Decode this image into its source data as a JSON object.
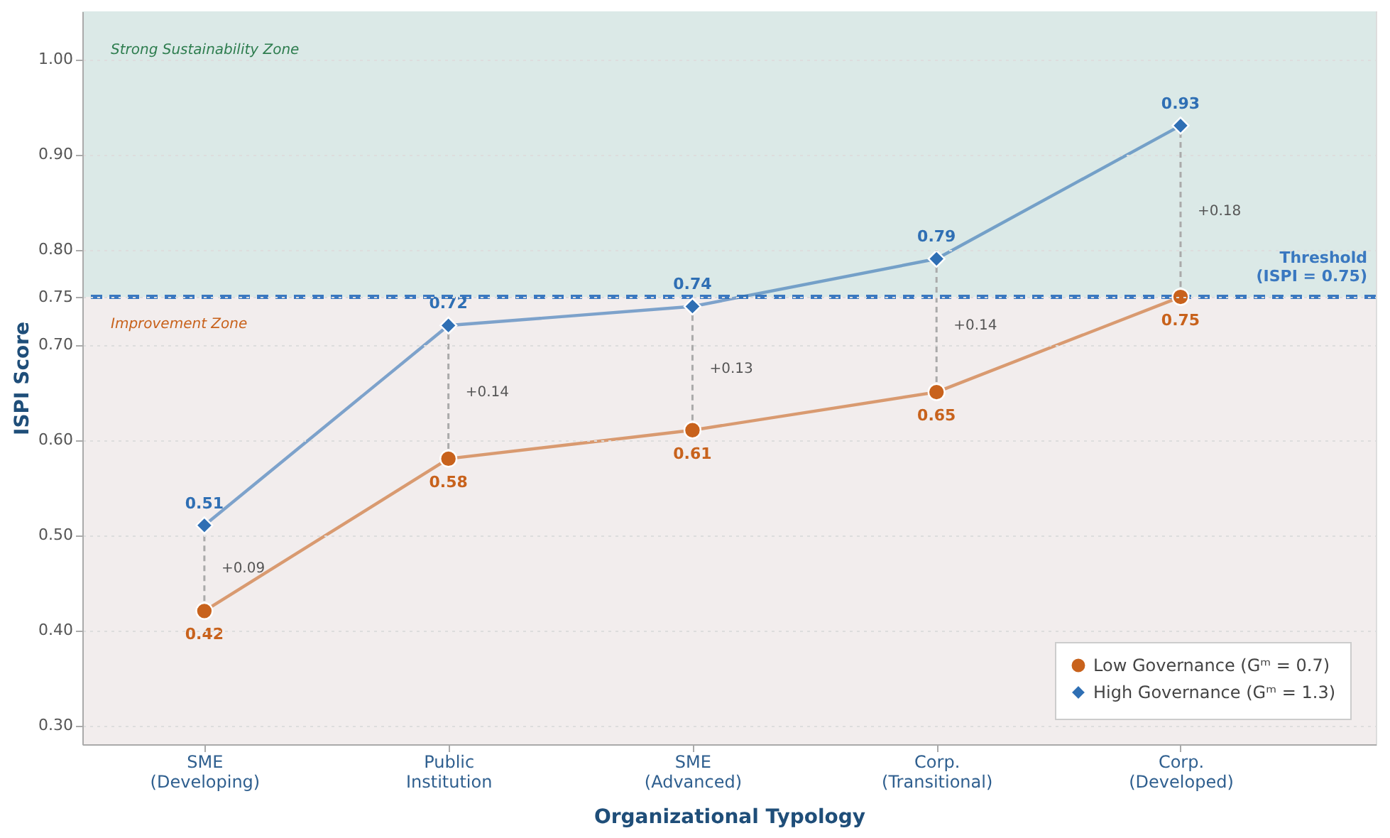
{
  "chart_data": {
    "type": "line",
    "xlabel": "Organizational Typology",
    "ylabel": "ISPI Score",
    "categories": [
      "SME\n(Developing)",
      "Public\nInstitution",
      "SME\n(Advanced)",
      "Corp.\n(Transitional)",
      "Corp.\n(Developed)"
    ],
    "series": [
      {
        "name": "Low Governance (Gᵐ = 0.7)",
        "color": "#c8621c",
        "marker": "circle",
        "values": [
          0.42,
          0.58,
          0.61,
          0.65,
          0.75
        ]
      },
      {
        "name": "High Governance (Gᵐ = 1.3)",
        "color": "#2f6fb4",
        "marker": "diamond",
        "values": [
          0.51,
          0.72,
          0.74,
          0.79,
          0.93
        ]
      }
    ],
    "ylim": [
      0.28,
      1.05
    ],
    "yticks": [
      {
        "value": 0.3,
        "label": "0.30"
      },
      {
        "value": 0.4,
        "label": "0.40"
      },
      {
        "value": 0.5,
        "label": "0.50"
      },
      {
        "value": 0.6,
        "label": "0.60"
      },
      {
        "value": 0.7,
        "label": "0.70"
      },
      {
        "value": 0.75,
        "label": "0.75"
      },
      {
        "value": 0.8,
        "label": "0.80"
      },
      {
        "value": 0.9,
        "label": "0.90"
      },
      {
        "value": 1.0,
        "label": "1.00"
      }
    ],
    "ref_lines": [
      {
        "axis": "y",
        "value": 0.75,
        "label": "Threshold\n(ISPI = 0.75)",
        "color": "#3a78c0",
        "line_style": "dashed"
      }
    ],
    "bands": [
      {
        "axis": "y",
        "from": 0.75,
        "to": 1.05,
        "label": "Strong Sustainability Zone",
        "color": "#dbe9e7"
      },
      {
        "axis": "y",
        "from": 0.28,
        "to": 0.75,
        "label": "Improvement Zone",
        "color": "#f2eded"
      }
    ],
    "annotations": [
      "+0.09",
      "+0.14",
      "+0.13",
      "+0.14",
      "+0.18"
    ],
    "data_labels": true,
    "grid": "y",
    "legend": "bottom right"
  }
}
